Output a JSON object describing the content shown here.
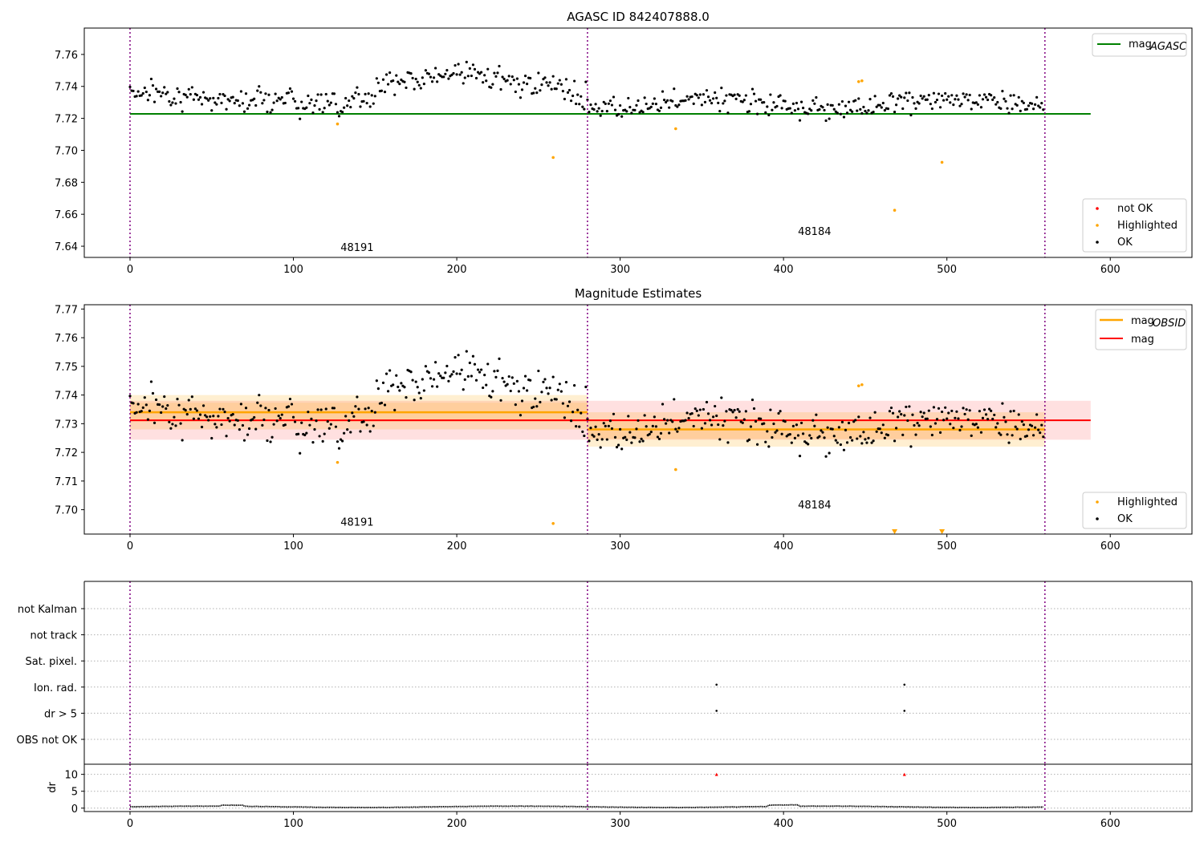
{
  "figure": {
    "title1": "AGASC ID 842407888.0",
    "title2": "Magnitude Estimates"
  },
  "colors": {
    "ok": "#000000",
    "highlighted": "#ffa500",
    "not_ok": "#ff0000",
    "mag_agasc": "#008000",
    "mag_obsid": "#ffa500",
    "mag": "#ff0000",
    "obs_boundary": "#800080"
  },
  "chart_data": [
    {
      "type": "scatter",
      "title": "AGASC ID 842407888.0",
      "xlim": [
        -28,
        650
      ],
      "ylim": [
        7.633,
        7.7765
      ],
      "xticks": [
        0,
        100,
        200,
        300,
        400,
        500,
        600
      ],
      "yticks": [
        7.64,
        7.66,
        7.68,
        7.7,
        7.72,
        7.74,
        7.76
      ],
      "obs_boundaries": [
        0,
        280,
        560
      ],
      "obs_labels": [
        {
          "text": "48191",
          "x": 139,
          "y": 7.637
        },
        {
          "text": "48184",
          "x": 419,
          "y": 7.647
        }
      ],
      "lines": [
        {
          "name": "mag_AGASC",
          "legend": "mag",
          "legend_sub": "AGASC",
          "y": 7.7228,
          "x": [
            0,
            588
          ],
          "color": "#008000"
        }
      ],
      "series": [
        {
          "name": "not OK",
          "x": [],
          "y": []
        },
        {
          "name": "Highlighted",
          "x": [
            127,
            259,
            334,
            446,
            448,
            468,
            497
          ],
          "y": [
            7.7165,
            7.6955,
            7.7135,
            7.743,
            7.7435,
            7.6625,
            7.6925
          ]
        },
        {
          "name": "OK",
          "summary": "~560 points, x 0-559; obs 48191 mean ~7.734 (range 7.719-7.747), obs 48184 mean ~7.728 (range 7.715-7.741)"
        }
      ],
      "legend": {
        "location": "lower right",
        "entries": [
          "not OK",
          "Highlighted",
          "OK"
        ]
      },
      "legend2": {
        "location": "upper right",
        "entries": [
          "mag_AGASC"
        ]
      }
    },
    {
      "type": "scatter",
      "title": "Magnitude Estimates",
      "xlim": [
        -28,
        650
      ],
      "ylim": [
        7.6915,
        7.7715
      ],
      "xticks": [
        0,
        100,
        200,
        300,
        400,
        500,
        600
      ],
      "yticks": [
        7.7,
        7.71,
        7.72,
        7.73,
        7.74,
        7.75,
        7.76,
        7.77
      ],
      "obs_boundaries": [
        0,
        280,
        560
      ],
      "obs_labels": [
        {
          "text": "48191",
          "x": 139,
          "y": 7.6945
        },
        {
          "text": "48184",
          "x": 419,
          "y": 7.7005
        }
      ],
      "bands": [
        {
          "name": "mag",
          "x": [
            0,
            588
          ],
          "center": 7.7312,
          "half_width": 0.0068,
          "color": "#ff0000"
        },
        {
          "name": "mag_OBSID 48191",
          "x": [
            0,
            280
          ],
          "center": 7.734,
          "half_width": 0.006,
          "color": "#ffa500"
        },
        {
          "name": "mag_OBSID 48184",
          "x": [
            280,
            560
          ],
          "center": 7.728,
          "half_width": 0.006,
          "color": "#ffa500"
        }
      ],
      "lines": [
        {
          "name": "mag_OBSID",
          "legend": "mag",
          "legend_sub": "OBSID",
          "segments": [
            {
              "x": [
                0,
                280
              ],
              "y": 7.734
            },
            {
              "x": [
                280,
                560
              ],
              "y": 7.728
            }
          ],
          "color": "#ffa500"
        },
        {
          "name": "mag",
          "legend": "mag",
          "y": 7.7312,
          "x": [
            0,
            588
          ],
          "color": "#ff0000"
        }
      ],
      "series": [
        {
          "name": "Highlighted",
          "x": [
            127,
            259,
            334,
            446,
            448
          ],
          "y": [
            7.7165,
            7.6952,
            7.714,
            7.7432,
            7.7436
          ]
        },
        {
          "name": "Highlighted (below range)",
          "x": [
            468,
            497
          ],
          "y": [
            7.6915,
            7.6915
          ],
          "marker": "down-triangle"
        },
        {
          "name": "OK",
          "summary": "same points as top panel"
        }
      ],
      "legend": {
        "location": "lower right",
        "entries": [
          "Highlighted",
          "OK"
        ]
      },
      "legend2": {
        "location": "upper right",
        "entries": [
          "mag_OBSID",
          "mag"
        ]
      }
    },
    {
      "type": "scatter",
      "title": "",
      "xlim": [
        -28,
        650
      ],
      "xticks": [
        0,
        100,
        200,
        300,
        400,
        500,
        600
      ],
      "flag_rows": [
        "not Kalman",
        "not track",
        "Sat. pixel.",
        "Ion. rad.",
        "dr > 5",
        "OBS not OK"
      ],
      "flags": [
        {
          "row": "Ion. rad.",
          "x": [
            359,
            474
          ]
        },
        {
          "row": "dr > 5",
          "x": [
            359,
            474
          ]
        }
      ],
      "obs_boundaries": [
        0,
        280,
        560
      ]
    },
    {
      "type": "line",
      "ylabel": "dr",
      "xlim": [
        -28,
        650
      ],
      "ylim": [
        -1,
        13
      ],
      "yticks": [
        0,
        5,
        10
      ],
      "xticks": [
        0,
        100,
        200,
        300,
        400,
        500,
        600
      ],
      "series": [
        {
          "name": "dr",
          "summary": "~0.1-0.8 for x 0-559, near 0.4 average"
        },
        {
          "name": "dr outliers",
          "x": [
            359,
            474
          ],
          "y": [
            10,
            10
          ],
          "color": "#ff0000"
        }
      ],
      "obs_boundaries": [
        0,
        280,
        560
      ]
    }
  ]
}
